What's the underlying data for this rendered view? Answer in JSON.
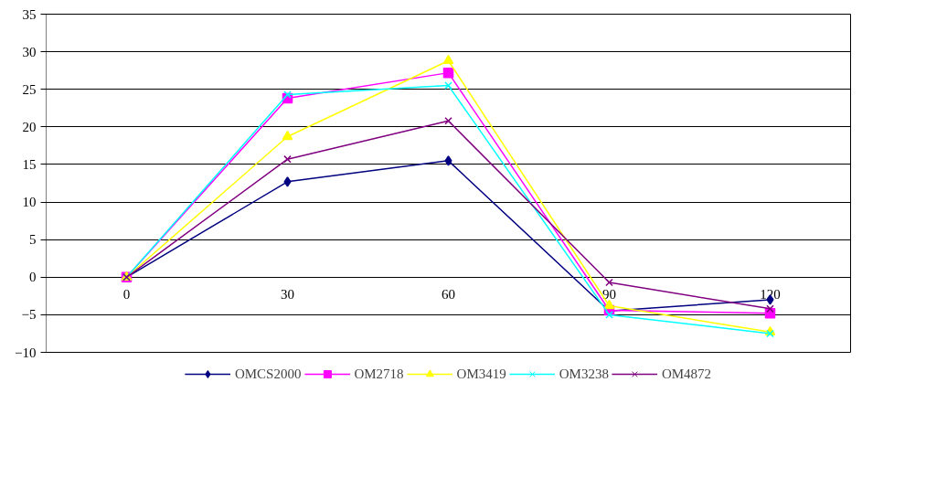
{
  "chart_data": {
    "type": "line",
    "categories": [
      "0",
      "30",
      "60",
      "90",
      "120"
    ],
    "ylim": [
      -10,
      35
    ],
    "yticks": [
      -10,
      -5,
      0,
      5,
      10,
      15,
      20,
      25,
      30,
      35
    ],
    "grid": "y",
    "legend": "bottom",
    "series": [
      {
        "name": "OMCS2000",
        "color": "#000080",
        "marker": "diamond",
        "values": [
          0,
          12.7,
          15.5,
          -4.5,
          -3.0
        ]
      },
      {
        "name": "OM2718",
        "color": "#ff00ff",
        "marker": "square",
        "values": [
          0,
          23.8,
          27.2,
          -4.4,
          -4.8
        ]
      },
      {
        "name": "OM3419",
        "color": "#ffff00",
        "marker": "triangle",
        "values": [
          0,
          18.7,
          28.8,
          -3.8,
          -7.3
        ]
      },
      {
        "name": "OM3238",
        "color": "#00ffff",
        "marker": "cross",
        "values": [
          0,
          24.3,
          25.5,
          -5.0,
          -7.5
        ]
      },
      {
        "name": "OM4872",
        "color": "#800080",
        "marker": "cross",
        "values": [
          0,
          15.7,
          20.8,
          -0.7,
          -4.2
        ]
      }
    ]
  }
}
